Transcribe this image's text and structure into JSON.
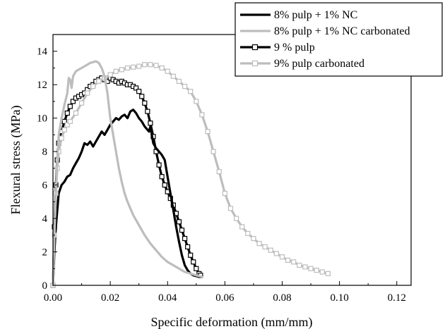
{
  "chart_data": {
    "type": "line",
    "title": "",
    "xlabel": "Specific deformation (mm/mm)",
    "ylabel": "Flexural stress (MPa)",
    "xlim": [
      0,
      0.125
    ],
    "ylim": [
      0,
      15
    ],
    "x_ticks": [
      "0.00",
      "0.02",
      "0.04",
      "0.06",
      "0.08",
      "0.10",
      "0.12"
    ],
    "x_tick_values": [
      0,
      0.02,
      0.04,
      0.06,
      0.08,
      0.1,
      0.12
    ],
    "y_ticks": [
      "0",
      "2",
      "4",
      "6",
      "8",
      "10",
      "12",
      "14"
    ],
    "y_tick_values": [
      0,
      2,
      4,
      6,
      8,
      10,
      12,
      14
    ],
    "grid": false,
    "legend_position": "top-right",
    "series": [
      {
        "name": "8% pulp + 1% NC",
        "color": "#000000",
        "marker": "none",
        "x": [
          0,
          0.0005,
          0.001,
          0.0015,
          0.002,
          0.003,
          0.004,
          0.005,
          0.006,
          0.007,
          0.008,
          0.009,
          0.01,
          0.011,
          0.012,
          0.013,
          0.014,
          0.015,
          0.016,
          0.017,
          0.018,
          0.019,
          0.02,
          0.021,
          0.022,
          0.023,
          0.024,
          0.025,
          0.026,
          0.027,
          0.028,
          0.029,
          0.03,
          0.031,
          0.032,
          0.0335,
          0.034,
          0.0345,
          0.035,
          0.036,
          0.037,
          0.038,
          0.039,
          0.04,
          0.041,
          0.042,
          0.043,
          0.044,
          0.045,
          0.046,
          0.047,
          0.048,
          0.049,
          0.05,
          0.051,
          0.052
        ],
        "y": [
          0,
          2.0,
          3.5,
          4.5,
          5.5,
          6.0,
          6.2,
          6.5,
          6.6,
          7.0,
          7.3,
          7.6,
          8.0,
          8.5,
          8.4,
          8.6,
          8.3,
          8.6,
          8.9,
          9.2,
          9.0,
          9.3,
          9.6,
          9.8,
          10.0,
          9.9,
          10.1,
          10.2,
          10.0,
          10.4,
          10.5,
          10.3,
          10.0,
          9.8,
          9.5,
          9.2,
          9.5,
          9.0,
          8.5,
          8.2,
          8.0,
          7.8,
          7.5,
          6.5,
          5.5,
          4.5,
          3.5,
          2.6,
          1.8,
          1.2,
          0.9,
          0.7,
          0.6,
          0.55,
          0.5,
          0.5
        ]
      },
      {
        "name": "8% pulp + 1% NC carbonated",
        "color": "#bdbdbd",
        "marker": "none",
        "x": [
          0,
          0.0005,
          0.001,
          0.0015,
          0.002,
          0.003,
          0.004,
          0.005,
          0.0055,
          0.006,
          0.0065,
          0.007,
          0.008,
          0.009,
          0.01,
          0.011,
          0.012,
          0.013,
          0.014,
          0.015,
          0.016,
          0.017,
          0.018,
          0.019,
          0.02,
          0.021,
          0.022,
          0.023,
          0.024,
          0.025,
          0.026,
          0.027,
          0.028,
          0.03,
          0.032,
          0.034,
          0.036,
          0.038,
          0.04,
          0.042,
          0.044,
          0.046,
          0.048,
          0.05,
          0.052
        ],
        "y": [
          0,
          3.0,
          5.5,
          7.5,
          9.0,
          10.0,
          10.8,
          11.5,
          12.4,
          12.3,
          11.8,
          12.5,
          12.8,
          12.9,
          13.0,
          13.1,
          13.2,
          13.3,
          13.35,
          13.4,
          13.3,
          13.0,
          12.5,
          11.5,
          10.0,
          9.0,
          8.0,
          7.0,
          6.2,
          5.5,
          5.0,
          4.6,
          4.2,
          3.6,
          3.0,
          2.5,
          2.1,
          1.7,
          1.4,
          1.2,
          1.0,
          0.8,
          0.7,
          0.6,
          0.5
        ]
      },
      {
        "name": "9 % pulp",
        "color": "#000000",
        "marker": "open-square",
        "x": [
          0,
          0.0005,
          0.001,
          0.0015,
          0.002,
          0.003,
          0.004,
          0.005,
          0.006,
          0.007,
          0.008,
          0.009,
          0.01,
          0.011,
          0.012,
          0.013,
          0.014,
          0.015,
          0.016,
          0.017,
          0.018,
          0.019,
          0.02,
          0.021,
          0.022,
          0.023,
          0.024,
          0.025,
          0.026,
          0.027,
          0.028,
          0.029,
          0.03,
          0.031,
          0.032,
          0.033,
          0.034,
          0.035,
          0.036,
          0.037,
          0.038,
          0.039,
          0.04,
          0.041,
          0.042,
          0.043,
          0.044,
          0.045,
          0.046,
          0.047,
          0.048,
          0.049,
          0.05,
          0.051,
          0.0515
        ],
        "y": [
          0,
          3.5,
          6.0,
          7.5,
          8.5,
          9.2,
          9.8,
          10.3,
          10.7,
          11.0,
          11.2,
          11.3,
          11.4,
          11.5,
          11.7,
          11.9,
          12.0,
          12.2,
          12.3,
          12.4,
          12.3,
          12.2,
          12.4,
          12.3,
          12.2,
          12.1,
          12.2,
          12.1,
          12.0,
          12.0,
          11.9,
          11.8,
          11.6,
          11.3,
          10.9,
          10.4,
          9.7,
          8.9,
          8.0,
          7.2,
          6.5,
          6.0,
          5.6,
          5.2,
          4.8,
          4.3,
          3.8,
          3.3,
          2.8,
          2.3,
          1.8,
          1.4,
          1.0,
          0.7,
          0.6
        ]
      },
      {
        "name": "9% pulp carbonated",
        "color": "#bdbdbd",
        "marker": "open-square",
        "x": [
          0,
          0.0005,
          0.001,
          0.0015,
          0.002,
          0.003,
          0.004,
          0.005,
          0.006,
          0.008,
          0.01,
          0.012,
          0.014,
          0.016,
          0.018,
          0.02,
          0.022,
          0.024,
          0.026,
          0.028,
          0.03,
          0.032,
          0.034,
          0.036,
          0.038,
          0.04,
          0.042,
          0.044,
          0.046,
          0.048,
          0.05,
          0.052,
          0.054,
          0.056,
          0.058,
          0.06,
          0.062,
          0.064,
          0.066,
          0.068,
          0.07,
          0.072,
          0.074,
          0.076,
          0.078,
          0.08,
          0.082,
          0.084,
          0.086,
          0.088,
          0.09,
          0.092,
          0.094,
          0.096
        ],
        "y": [
          0,
          3.0,
          5.5,
          7.0,
          8.0,
          8.8,
          9.3,
          9.6,
          9.8,
          10.3,
          10.9,
          11.5,
          11.9,
          12.2,
          12.4,
          12.6,
          12.8,
          12.9,
          13.0,
          13.05,
          13.1,
          13.2,
          13.2,
          13.15,
          13.0,
          12.8,
          12.5,
          12.2,
          11.9,
          11.6,
          11.0,
          10.2,
          9.2,
          8.0,
          6.8,
          5.5,
          4.6,
          4.0,
          3.5,
          3.1,
          2.8,
          2.5,
          2.3,
          2.1,
          1.9,
          1.7,
          1.5,
          1.4,
          1.2,
          1.1,
          1.0,
          0.9,
          0.8,
          0.7
        ]
      }
    ]
  }
}
